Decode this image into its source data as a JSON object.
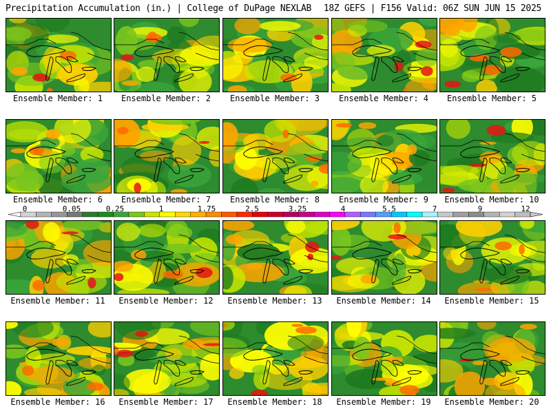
{
  "header": {
    "left": "Precipitation Accumulation (in.) | College of DuPage NEXLAB",
    "right": "18Z GEFS | F156 Valid: 06Z SUN JUN 15 2025"
  },
  "members": [
    "Ensemble Member: 1",
    "Ensemble Member: 2",
    "Ensemble Member: 3",
    "Ensemble Member: 4",
    "Ensemble Member: 5",
    "Ensemble Member: 6",
    "Ensemble Member: 7",
    "Ensemble Member: 8",
    "Ensemble Member: 9",
    "Ensemble Member: 10",
    "Ensemble Member: 11",
    "Ensemble Member: 12",
    "Ensemble Member: 13",
    "Ensemble Member: 14",
    "Ensemble Member: 15",
    "Ensemble Member: 16",
    "Ensemble Member: 17",
    "Ensemble Member: 18",
    "Ensemble Member: 19",
    "Ensemble Member: 20"
  ],
  "legend": {
    "ticks": [
      "0",
      "0.05",
      "0.25",
      "1",
      "1.75",
      "2.5",
      "3.25",
      "4",
      "5.5",
      "7",
      "9",
      "12"
    ],
    "colors": [
      "#d2d2d2",
      "#b4b4b4",
      "#969696",
      "#787878",
      "#2d7a2d",
      "#1f8a1f",
      "#3aa53a",
      "#7ac61e",
      "#c8e600",
      "#ffff00",
      "#ffd800",
      "#ffb000",
      "#ff8c00",
      "#ff5a00",
      "#ff2800",
      "#e60000",
      "#c80032",
      "#b4005a",
      "#c8008c",
      "#dc00c8",
      "#ff00ff",
      "#b45aff",
      "#7878ff",
      "#50a0ff",
      "#00c8ff",
      "#00ffff",
      "#aaf0ff",
      "#c8c8c8",
      "#a0a0a0",
      "#8c8c8c",
      "#b4b4b4",
      "#d2d2d2",
      "#bebebe"
    ]
  }
}
